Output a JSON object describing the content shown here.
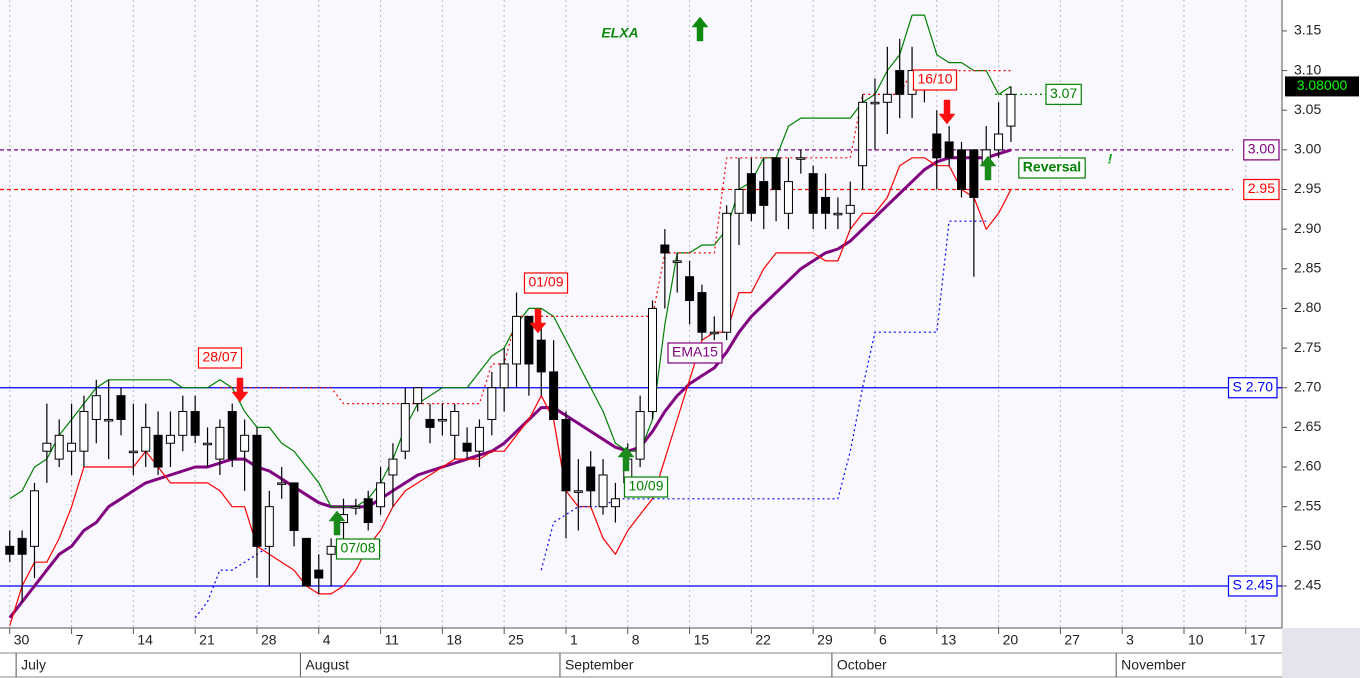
{
  "chart_data": {
    "type": "candlestick",
    "title": "ELXA",
    "title_color": "#0f8a0f",
    "title_arrow": "up",
    "categories": [
      null,
      null,
      null,
      null,
      null,
      null,
      null,
      null,
      null,
      null,
      null,
      null,
      null,
      null,
      null,
      null,
      null,
      null,
      null,
      null,
      null,
      null,
      null,
      null,
      null,
      null,
      null,
      null,
      null,
      null,
      null,
      null,
      null,
      null,
      null,
      null,
      null,
      null,
      null,
      null,
      null,
      null,
      null,
      null,
      null,
      null,
      null,
      null,
      null,
      null,
      null,
      null,
      null,
      null,
      null,
      null,
      null,
      null,
      null,
      null,
      null,
      null,
      null,
      null,
      null,
      null,
      null,
      null,
      null,
      null,
      null,
      null,
      null,
      null,
      null,
      null,
      null,
      null,
      null,
      null,
      null,
      null
    ],
    "open": [
      2.5,
      2.51,
      2.5,
      2.62,
      2.61,
      2.62,
      2.62,
      2.66,
      2.66,
      2.69,
      2.62,
      2.62,
      2.64,
      2.63,
      2.64,
      2.67,
      2.63,
      2.61,
      2.67,
      2.62,
      2.64,
      2.5,
      2.58,
      2.58,
      2.51,
      2.47,
      2.49,
      2.53,
      2.55,
      2.56,
      2.55,
      2.59,
      2.62,
      2.68,
      2.66,
      2.66,
      2.64,
      2.63,
      2.62,
      2.66,
      2.7,
      2.73,
      2.79,
      2.76,
      2.72,
      2.66,
      2.57,
      2.6,
      2.55,
      2.55,
      2.58,
      2.61,
      2.67,
      2.88,
      2.86,
      2.84,
      2.82,
      2.77,
      2.77,
      2.92,
      2.97,
      2.96,
      2.99,
      2.92,
      2.99,
      2.97,
      2.94,
      2.92,
      2.92,
      2.98,
      3.06,
      3.06,
      3.1,
      3.07,
      3.08,
      3.02,
      3.01,
      3.0,
      3.0,
      2.98,
      3.0,
      3.03
    ],
    "high": [
      2.52,
      2.52,
      2.58,
      2.68,
      2.66,
      2.68,
      2.69,
      2.71,
      2.71,
      2.7,
      2.68,
      2.68,
      2.67,
      2.67,
      2.69,
      2.69,
      2.65,
      2.66,
      2.68,
      2.66,
      2.65,
      2.57,
      2.6,
      2.58,
      2.51,
      2.49,
      2.51,
      2.56,
      2.56,
      2.57,
      2.6,
      2.63,
      2.7,
      2.7,
      2.68,
      2.68,
      2.68,
      2.65,
      2.66,
      2.72,
      2.75,
      2.82,
      2.79,
      2.78,
      2.76,
      2.67,
      2.61,
      2.62,
      2.61,
      2.58,
      2.63,
      2.69,
      2.81,
      2.9,
      2.87,
      2.86,
      2.83,
      2.79,
      2.93,
      2.99,
      2.99,
      2.99,
      2.99,
      2.99,
      3.0,
      2.98,
      2.97,
      2.94,
      2.96,
      3.07,
      3.09,
      3.13,
      3.14,
      3.13,
      3.1,
      3.05,
      3.03,
      3.01,
      3.0,
      3.03,
      3.06,
      3.08
    ],
    "low": [
      2.48,
      2.43,
      2.46,
      2.58,
      2.6,
      2.59,
      2.6,
      2.63,
      2.61,
      2.64,
      2.59,
      2.6,
      2.59,
      2.6,
      2.62,
      2.63,
      2.6,
      2.59,
      2.6,
      2.57,
      2.46,
      2.45,
      2.56,
      2.5,
      2.45,
      2.44,
      2.45,
      2.51,
      2.54,
      2.52,
      2.54,
      2.55,
      2.61,
      2.67,
      2.63,
      2.64,
      2.61,
      2.61,
      2.6,
      2.64,
      2.67,
      2.7,
      2.69,
      2.69,
      2.66,
      2.51,
      2.52,
      2.55,
      2.54,
      2.53,
      2.57,
      2.6,
      2.66,
      2.8,
      2.82,
      2.78,
      2.76,
      2.76,
      2.76,
      2.88,
      2.91,
      2.9,
      2.91,
      2.9,
      2.97,
      2.9,
      2.9,
      2.9,
      2.9,
      2.95,
      3.0,
      3.02,
      3.04,
      3.04,
      3.06,
      2.95,
      2.98,
      2.94,
      2.84,
      2.98,
      2.99,
      3.01
    ],
    "close": [
      2.49,
      2.49,
      2.57,
      2.63,
      2.64,
      2.63,
      2.67,
      2.69,
      2.66,
      2.66,
      2.62,
      2.65,
      2.6,
      2.64,
      2.67,
      2.64,
      2.63,
      2.65,
      2.61,
      2.64,
      2.5,
      2.55,
      2.58,
      2.52,
      2.45,
      2.46,
      2.5,
      2.54,
      2.55,
      2.53,
      2.58,
      2.61,
      2.68,
      2.7,
      2.65,
      2.66,
      2.67,
      2.62,
      2.65,
      2.7,
      2.73,
      2.79,
      2.73,
      2.72,
      2.66,
      2.57,
      2.57,
      2.57,
      2.59,
      2.56,
      2.61,
      2.67,
      2.8,
      2.87,
      2.86,
      2.81,
      2.77,
      2.77,
      2.92,
      2.95,
      2.92,
      2.93,
      2.95,
      2.96,
      2.99,
      2.92,
      2.92,
      2.92,
      2.93,
      3.06,
      3.06,
      3.07,
      3.07,
      3.1,
      3.08,
      2.99,
      2.99,
      2.95,
      2.94,
      3.0,
      3.02,
      3.07
    ],
    "up_color": "#ffffff",
    "down_color": "#000000",
    "lines": [
      {
        "name": "EMA15",
        "color": "#800080",
        "style": "thick",
        "values": [
          2.41,
          2.43,
          2.45,
          2.47,
          2.49,
          2.5,
          2.52,
          2.53,
          2.55,
          2.56,
          2.57,
          2.58,
          2.585,
          2.59,
          2.595,
          2.6,
          2.6,
          2.605,
          2.61,
          2.61,
          2.6,
          2.595,
          2.585,
          2.575,
          2.565,
          2.555,
          2.55,
          2.55,
          2.55,
          2.55,
          2.56,
          2.57,
          2.58,
          2.59,
          2.595,
          2.6,
          2.605,
          2.61,
          2.615,
          2.62,
          2.63,
          2.645,
          2.66,
          2.675,
          2.675,
          2.665,
          2.655,
          2.645,
          2.635,
          2.625,
          2.62,
          2.625,
          2.645,
          2.67,
          2.69,
          2.705,
          2.715,
          2.725,
          2.745,
          2.77,
          2.79,
          2.805,
          2.82,
          2.835,
          2.85,
          2.86,
          2.87,
          2.875,
          2.885,
          2.9,
          2.915,
          2.93,
          2.945,
          2.96,
          2.975,
          2.985,
          2.99,
          2.99,
          2.99,
          2.99,
          2.995,
          3.0
        ]
      },
      {
        "color": "#008000",
        "style": "solid",
        "values": [
          2.56,
          2.57,
          2.6,
          2.61,
          2.64,
          2.66,
          2.68,
          2.7,
          2.71,
          2.71,
          2.71,
          2.71,
          2.71,
          2.71,
          2.7,
          2.7,
          2.7,
          2.71,
          2.7,
          2.67,
          2.65,
          2.65,
          2.63,
          2.62,
          2.6,
          2.58,
          2.55,
          2.55,
          2.55,
          2.56,
          2.58,
          2.61,
          2.65,
          2.68,
          2.69,
          2.7,
          2.7,
          2.7,
          2.72,
          2.74,
          2.75,
          2.78,
          2.8,
          2.8,
          2.79,
          2.76,
          2.73,
          2.7,
          2.67,
          2.63,
          2.62,
          2.62,
          2.66,
          2.78,
          2.87,
          2.87,
          2.88,
          2.88,
          2.9,
          2.95,
          2.96,
          2.99,
          2.99,
          3.03,
          3.04,
          3.04,
          3.04,
          3.04,
          3.04,
          3.06,
          3.07,
          3.1,
          3.12,
          3.17,
          3.17,
          3.12,
          3.11,
          3.11,
          3.1,
          3.1,
          3.07,
          3.08
        ]
      },
      {
        "color": "#ff0000",
        "style": "solid",
        "values": [
          2.4,
          2.45,
          2.48,
          2.48,
          2.51,
          2.55,
          2.6,
          2.6,
          2.6,
          2.6,
          2.6,
          2.62,
          2.6,
          2.58,
          2.58,
          2.58,
          2.58,
          2.57,
          2.55,
          2.55,
          2.5,
          2.49,
          2.48,
          2.47,
          2.45,
          2.44,
          2.44,
          2.45,
          2.47,
          2.5,
          2.52,
          2.55,
          2.57,
          2.58,
          2.59,
          2.6,
          2.61,
          2.61,
          2.61,
          2.62,
          2.62,
          2.64,
          2.66,
          2.69,
          2.66,
          2.57,
          2.55,
          2.55,
          2.51,
          2.49,
          2.52,
          2.54,
          2.56,
          2.61,
          2.66,
          2.71,
          2.76,
          2.77,
          2.77,
          2.82,
          2.82,
          2.85,
          2.87,
          2.87,
          2.87,
          2.87,
          2.86,
          2.86,
          2.9,
          2.92,
          2.92,
          2.94,
          2.98,
          2.99,
          2.99,
          2.98,
          2.98,
          2.95,
          2.94,
          2.9,
          2.92,
          2.95
        ]
      },
      {
        "color": "#0000ff",
        "style": "dotted",
        "values": [
          null,
          null,
          null,
          null,
          null,
          null,
          null,
          null,
          null,
          null,
          null,
          null,
          null,
          null,
          null,
          2.41,
          2.43,
          2.47,
          2.47,
          2.48,
          2.49,
          2.5,
          null,
          null,
          null,
          null,
          null,
          null,
          null,
          null,
          null,
          null,
          null,
          null,
          null,
          null,
          null,
          null,
          null,
          null,
          null,
          null,
          null,
          2.47,
          2.53,
          2.54,
          2.55,
          2.55,
          2.55,
          2.56,
          2.56,
          2.56,
          2.56,
          2.56,
          2.56,
          2.56,
          2.56,
          2.56,
          2.56,
          2.56,
          2.56,
          2.56,
          2.56,
          2.56,
          2.56,
          2.56,
          2.56,
          2.56,
          2.62,
          2.7,
          2.77,
          2.77,
          2.77,
          2.77,
          2.77,
          2.77,
          2.91,
          2.91,
          2.91,
          2.91,
          null,
          null
        ]
      },
      {
        "color": "#ff0000",
        "style": "dotted",
        "values": [
          null,
          null,
          null,
          null,
          null,
          null,
          null,
          null,
          null,
          null,
          null,
          null,
          null,
          null,
          null,
          null,
          null,
          2.7,
          2.7,
          2.7,
          2.7,
          2.7,
          2.7,
          2.7,
          2.7,
          2.7,
          2.7,
          2.68,
          2.68,
          2.68,
          2.68,
          2.68,
          2.68,
          2.68,
          2.68,
          2.68,
          2.68,
          2.68,
          2.68,
          2.73,
          2.73,
          2.79,
          2.79,
          2.79,
          2.79,
          2.79,
          2.79,
          2.79,
          2.79,
          2.79,
          2.79,
          2.79,
          2.79,
          2.87,
          2.87,
          2.87,
          2.87,
          2.87,
          2.99,
          2.99,
          2.99,
          2.99,
          2.99,
          2.99,
          2.99,
          2.99,
          2.99,
          2.99,
          2.99,
          3.07,
          3.07,
          3.07,
          3.07,
          3.1,
          3.1,
          3.1,
          3.1,
          3.1,
          3.1,
          3.1,
          3.1,
          3.1
        ]
      }
    ],
    "hlines": [
      {
        "value": 2.7,
        "label": "S 2.70",
        "color": "#0000ff",
        "style": "solid"
      },
      {
        "value": 2.45,
        "label": "S 2.45",
        "color": "#0000ff",
        "style": "solid"
      },
      {
        "value": 3,
        "label": "3.00",
        "color": "#800080",
        "style": "dashed"
      },
      {
        "value": 2.95,
        "label": "2.95",
        "color": "#ff0000",
        "style": "dashed"
      },
      {
        "value": 3.07,
        "label": "3.07",
        "color": "#008000",
        "style": "dotted"
      }
    ],
    "annotations": [
      {
        "text": "28/07",
        "color": "#ff0000",
        "arrow": "down"
      },
      {
        "text": "01/09",
        "color": "#ff0000",
        "arrow": "down"
      },
      {
        "text": "16/10",
        "color": "#ff0000",
        "arrow": "down"
      },
      {
        "text": "07/08",
        "color": "#008000",
        "arrow": "up"
      },
      {
        "text": "10/09",
        "color": "#008000",
        "arrow": "up"
      },
      {
        "text": "Reversal",
        "color": "#008000",
        "arrow": "up"
      },
      {
        "text": "!",
        "color": "#10a010"
      }
    ],
    "last_price": {
      "value": 3.08,
      "label": "3.08000"
    },
    "xlim": [
      -0.79,
      102.93
    ],
    "ylim": [
      2.397,
      3.189
    ],
    "yticks": [
      2.45,
      {
        "value": 2.5,
        "label": "2.50"
      },
      2.55,
      {
        "value": 2.6,
        "label": "2.60"
      },
      2.65,
      {
        "value": 2.7,
        "label": "2.70"
      },
      2.75,
      {
        "value": 2.8,
        "label": "2.80"
      },
      2.85,
      {
        "value": 2.9,
        "label": "2.90"
      },
      2.95,
      {
        "value": 3,
        "label": "3.00"
      },
      3.05,
      {
        "value": 3.1,
        "label": "3.10"
      },
      3.15
    ],
    "xticks": [
      {
        "value": 0,
        "label": "30"
      },
      {
        "value": 5,
        "label": "7"
      },
      {
        "value": 10,
        "label": "14"
      },
      {
        "value": 15,
        "label": "21"
      },
      {
        "value": 20,
        "label": "28"
      },
      {
        "value": 25,
        "label": "4"
      },
      {
        "value": 30,
        "label": "11"
      },
      {
        "value": 35,
        "label": "18"
      },
      {
        "value": 40,
        "label": "25"
      },
      {
        "value": 45,
        "label": "1"
      },
      {
        "value": 50,
        "label": "8"
      },
      {
        "value": 55,
        "label": "15"
      },
      {
        "value": 60,
        "label": "22"
      },
      {
        "value": 65,
        "label": "29"
      },
      {
        "value": 70,
        "label": "6"
      },
      {
        "value": 75,
        "label": "13"
      },
      {
        "value": 80,
        "label": "20"
      },
      {
        "value": 85,
        "label": "27"
      },
      {
        "value": 90,
        "label": "3"
      },
      {
        "value": 95,
        "label": "10"
      },
      {
        "value": 100,
        "label": "17"
      }
    ],
    "month_ticks": [
      {
        "value": 1,
        "label": "July"
      },
      {
        "value": 24,
        "label": "August"
      },
      {
        "value": 45,
        "label": "September"
      },
      {
        "value": 67,
        "label": "October"
      },
      {
        "value": 90,
        "label": "November"
      }
    ],
    "grid": true
  }
}
